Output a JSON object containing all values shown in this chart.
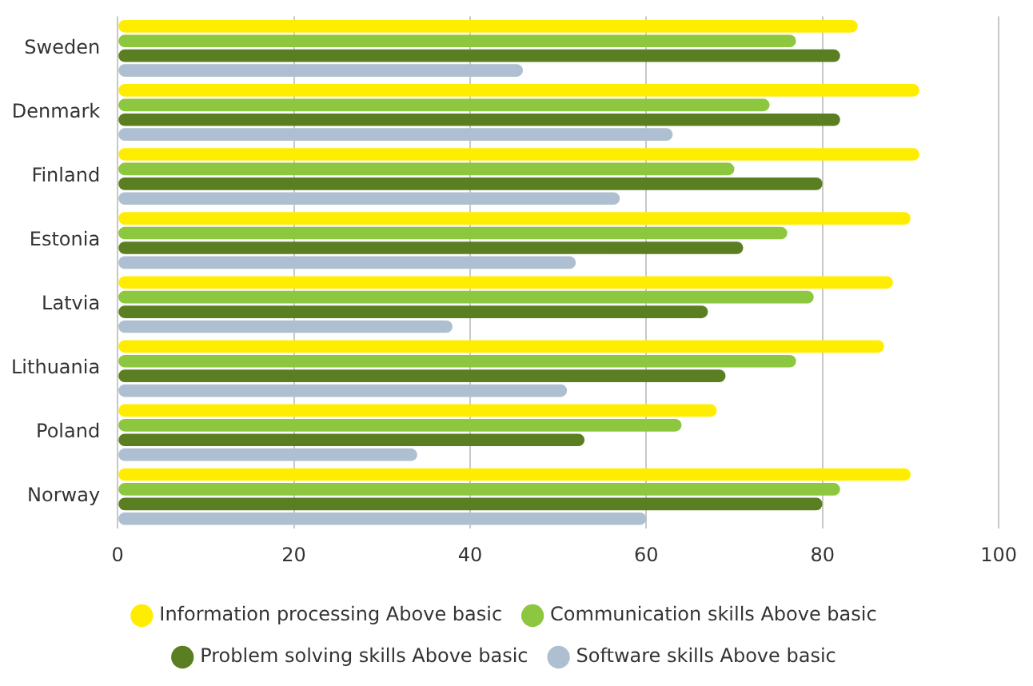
{
  "chart_data": {
    "type": "bar",
    "orientation": "horizontal",
    "categories": [
      "Sweden",
      "Denmark",
      "Finland",
      "Estonia",
      "Latvia",
      "Lithuania",
      "Poland",
      "Norway"
    ],
    "series": [
      {
        "name": "Information processing Above basic",
        "color": "#ffed00",
        "values": [
          84,
          91,
          91,
          90,
          88,
          87,
          68,
          90
        ]
      },
      {
        "name": "Communication skills Above basic",
        "color": "#8dc63f",
        "values": [
          77,
          74,
          70,
          76,
          79,
          77,
          64,
          82
        ]
      },
      {
        "name": "Problem solving skills Above basic",
        "color": "#5a7f22",
        "values": [
          82,
          82,
          80,
          71,
          67,
          69,
          53,
          80
        ]
      },
      {
        "name": "Software skills Above basic",
        "color": "#adbfd0",
        "values": [
          46,
          63,
          57,
          52,
          38,
          51,
          34,
          60
        ]
      }
    ],
    "xlim": [
      0,
      100
    ],
    "xticks": [
      0,
      20,
      40,
      60,
      80,
      100
    ],
    "grid": "x",
    "legend": "bottom",
    "marker": "circle"
  }
}
